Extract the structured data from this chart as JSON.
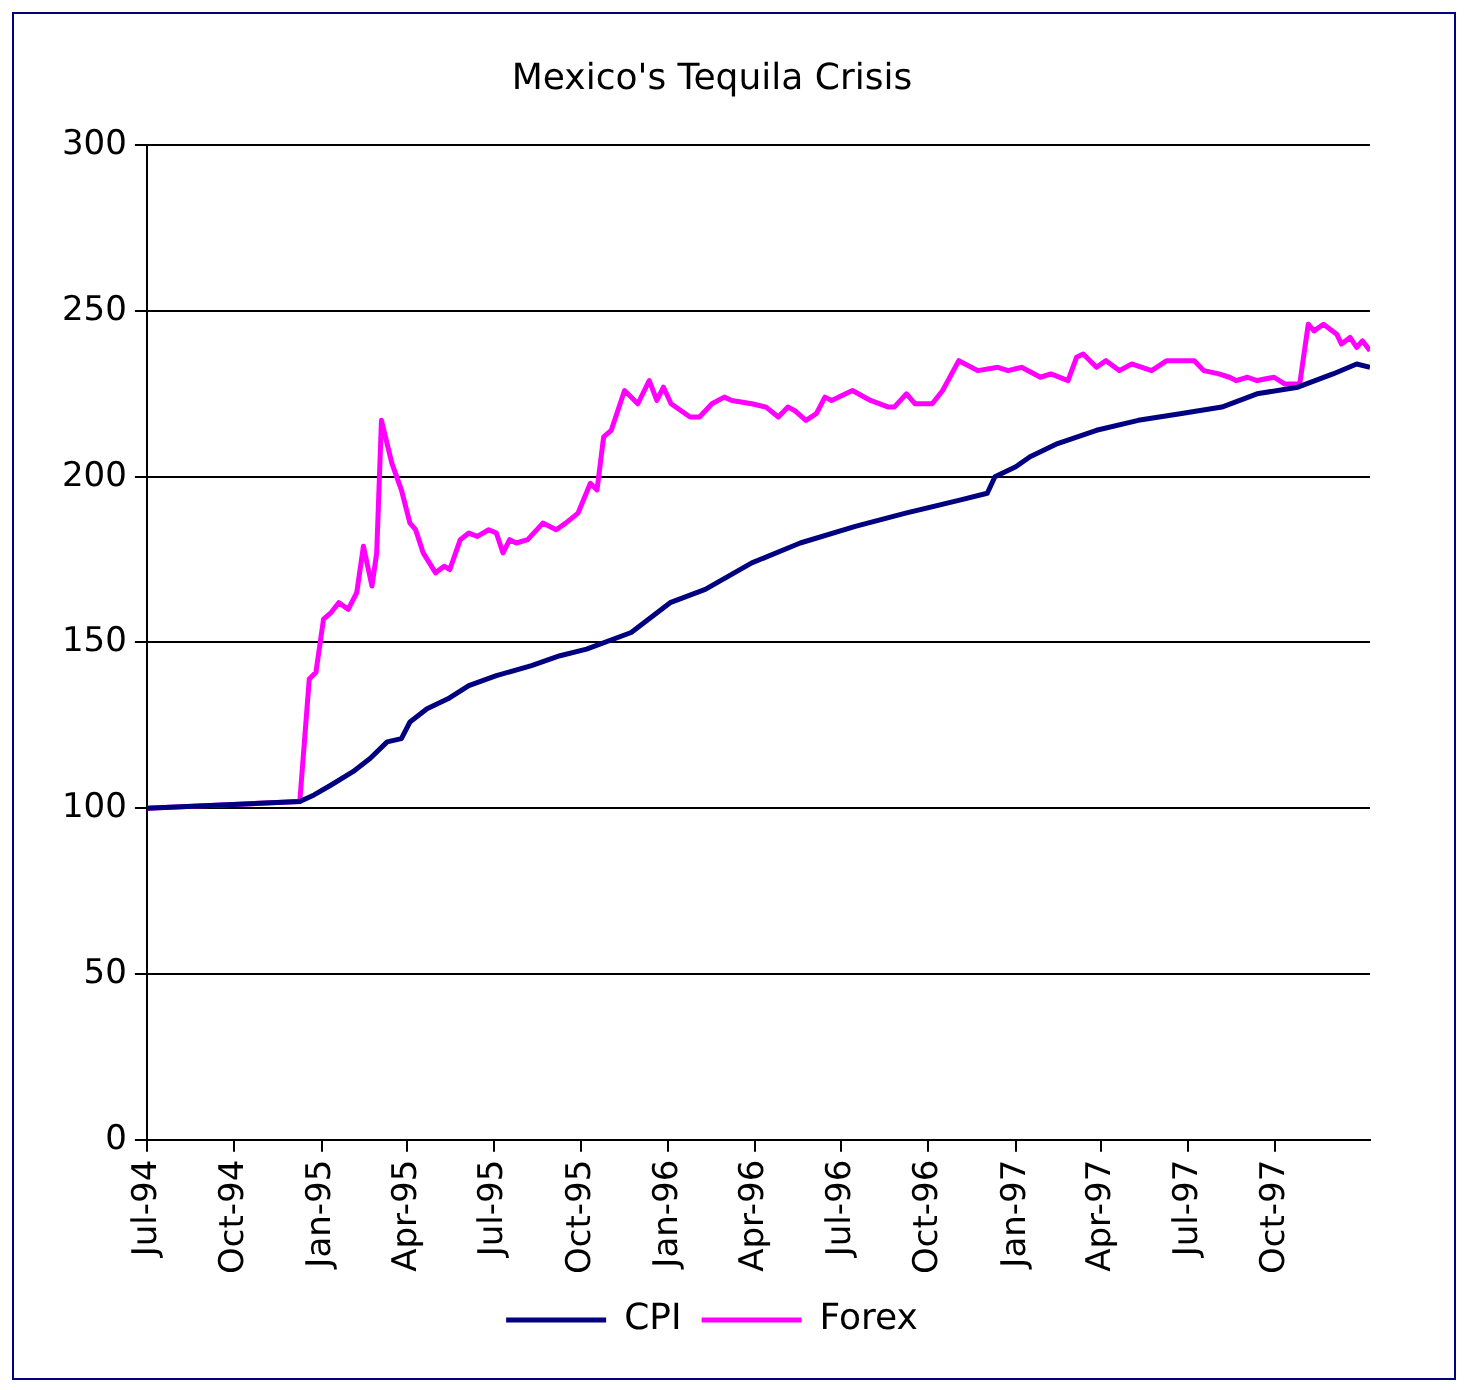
{
  "chart_data": {
    "type": "line",
    "title": "Mexico's Tequila Crisis",
    "xlim": [
      "1994-07-01",
      "1998-01-09"
    ],
    "xticks": [
      {
        "value": "1994-07",
        "label": "Jul-94"
      },
      {
        "value": "1994-10",
        "label": "Oct-94"
      },
      {
        "value": "1995-01",
        "label": "Jan-95"
      },
      {
        "value": "1995-04",
        "label": "Apr-95"
      },
      {
        "value": "1995-07",
        "label": "Jul-95"
      },
      {
        "value": "1995-10",
        "label": "Oct-95"
      },
      {
        "value": "1996-01",
        "label": "Jan-96"
      },
      {
        "value": "1996-04",
        "label": "Apr-96"
      },
      {
        "value": "1996-07",
        "label": "Jul-96"
      },
      {
        "value": "1996-10",
        "label": "Oct-96"
      },
      {
        "value": "1997-01",
        "label": "Jan-97"
      },
      {
        "value": "1997-04",
        "label": "Apr-97"
      },
      {
        "value": "1997-07",
        "label": "Jul-97"
      },
      {
        "value": "1997-10",
        "label": "Oct-97"
      }
    ],
    "ylim": [
      0,
      300
    ],
    "yticks": [
      0,
      50,
      100,
      150,
      200,
      250,
      300
    ],
    "grid": "y",
    "legend": "bottom",
    "series": [
      {
        "name": "CPI",
        "color": "#000080",
        "x": [
          "1994-07-01",
          "1994-12-09",
          "1994-12-24",
          "1995-01-11",
          "1995-02-03",
          "1995-02-21",
          "1995-03-11",
          "1995-03-26",
          "1995-04-04",
          "1995-04-22",
          "1995-05-14",
          "1995-06-05",
          "1995-07-04",
          "1995-08-10",
          "1995-09-09",
          "1995-10-07",
          "1995-11-23",
          "1996-01-03",
          "1996-02-09",
          "1996-03-29",
          "1996-05-19",
          "1996-07-16",
          "1996-09-07",
          "1996-11-04",
          "1996-12-02",
          "1996-12-10",
          "1997-01-01",
          "1997-01-16",
          "1997-02-14",
          "1997-03-27",
          "1997-05-10",
          "1997-06-23",
          "1997-08-06",
          "1997-09-12",
          "1997-10-25",
          "1997-12-01",
          "1997-12-26",
          "1998-01-09"
        ],
        "values": [
          100,
          102,
          104,
          107,
          111,
          115,
          120,
          121,
          126,
          130,
          133,
          137,
          140,
          143,
          146,
          148,
          153,
          162,
          166,
          174,
          180,
          185,
          189,
          193,
          195,
          200,
          203,
          206,
          210,
          214,
          217,
          219,
          221,
          225,
          227,
          231,
          234,
          233
        ]
      },
      {
        "name": "Forex",
        "color": "#ff00ff",
        "x": [
          "1994-07-01",
          "1994-12-09",
          "1994-12-19",
          "1994-12-26",
          "1995-01-03",
          "1995-01-11",
          "1995-01-19",
          "1995-01-29",
          "1995-02-07",
          "1995-02-14",
          "1995-02-23",
          "1995-02-28",
          "1995-03-05",
          "1995-03-16",
          "1995-03-26",
          "1995-04-04",
          "1995-04-10",
          "1995-04-18",
          "1995-05-01",
          "1995-05-10",
          "1995-05-16",
          "1995-05-27",
          "1995-06-05",
          "1995-06-14",
          "1995-06-26",
          "1995-07-04",
          "1995-07-11",
          "1995-07-18",
          "1995-07-25",
          "1995-08-06",
          "1995-08-22",
          "1995-09-05",
          "1995-09-15",
          "1995-09-28",
          "1995-10-11",
          "1995-10-18",
          "1995-10-25",
          "1995-11-02",
          "1995-11-16",
          "1995-11-30",
          "1995-12-12",
          "1995-12-20",
          "1995-12-27",
          "1996-01-04",
          "1996-01-24",
          "1996-02-03",
          "1996-02-16",
          "1996-02-29",
          "1996-03-08",
          "1996-03-29",
          "1996-04-13",
          "1996-04-26",
          "1996-05-06",
          "1996-05-13",
          "1996-05-25",
          "1996-06-05",
          "1996-06-14",
          "1996-06-21",
          "1996-07-13",
          "1996-08-01",
          "1996-08-20",
          "1996-08-26",
          "1996-09-08",
          "1996-09-17",
          "1996-10-05",
          "1996-10-16",
          "1996-11-02",
          "1996-11-22",
          "1996-12-13",
          "1996-12-24",
          "1997-01-07",
          "1997-01-27",
          "1997-02-07",
          "1997-02-25",
          "1997-03-06",
          "1997-03-13",
          "1997-03-27",
          "1997-04-06",
          "1997-04-20",
          "1997-05-03",
          "1997-05-24",
          "1997-06-09",
          "1997-07-08",
          "1997-07-18",
          "1997-08-03",
          "1997-08-14",
          "1997-08-21",
          "1997-09-02",
          "1997-09-12",
          "1997-09-30",
          "1997-10-11",
          "1997-10-27",
          "1997-11-05",
          "1997-11-11",
          "1997-11-21",
          "1997-12-05",
          "1997-12-10",
          "1997-12-19",
          "1997-12-26",
          "1998-01-01",
          "1998-01-09"
        ],
        "values": [
          100,
          102,
          139,
          141,
          157,
          159,
          162,
          160,
          165,
          179,
          167,
          177,
          217,
          204,
          196,
          186,
          184,
          177,
          171,
          173,
          172,
          181,
          183,
          182,
          184,
          183,
          177,
          181,
          180,
          181,
          186,
          184,
          186,
          189,
          198,
          196,
          212,
          214,
          226,
          222,
          229,
          223,
          227,
          222,
          218,
          218,
          222,
          224,
          223,
          222,
          221,
          218,
          221,
          220,
          217,
          219,
          224,
          223,
          226,
          223,
          221,
          221,
          225,
          222,
          222,
          226,
          235,
          232,
          233,
          232,
          233,
          230,
          231,
          229,
          236,
          237,
          233,
          235,
          232,
          234,
          232,
          235,
          235,
          232,
          231,
          230,
          229,
          230,
          229,
          230,
          228,
          228,
          246,
          244,
          246,
          243,
          240,
          242,
          239,
          241,
          238
        ]
      }
    ]
  }
}
